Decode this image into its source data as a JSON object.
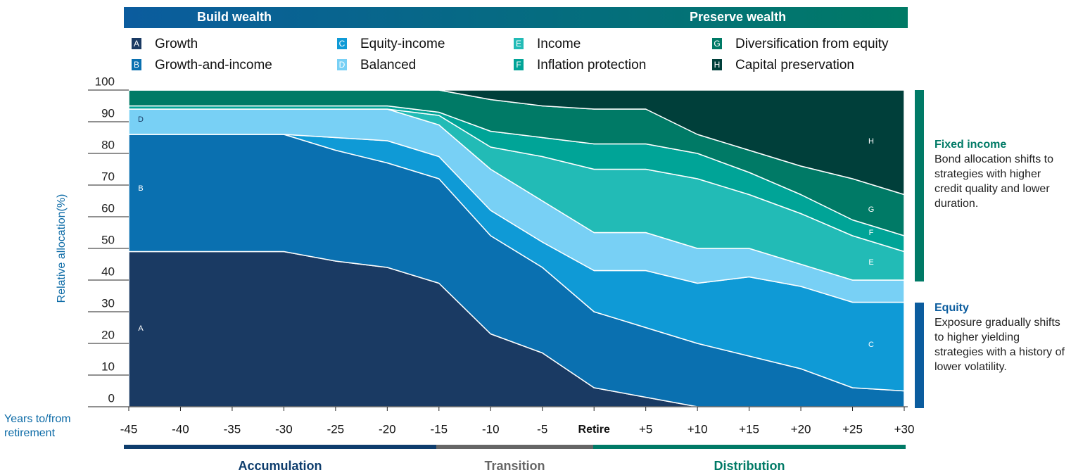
{
  "chart_data": {
    "type": "area",
    "stacked": true,
    "banner": [
      {
        "text": "Build wealth",
        "color": "#0b5c9e"
      },
      {
        "text": "Preserve wealth",
        "color": "#007a66"
      }
    ],
    "y_label": "Relative allocation(%)",
    "x_label": "Years to/from retirement",
    "categories": [
      "-45",
      "-40",
      "-35",
      "-30",
      "-25",
      "-20",
      "-15",
      "-10",
      "-5",
      "Retire",
      "+5",
      "+10",
      "+15",
      "+20",
      "+25",
      "+30"
    ],
    "series": [
      {
        "key": "A",
        "name": "Growth",
        "color": "#1a3a63",
        "values": [
          49,
          49,
          49,
          49,
          46,
          44,
          39,
          23,
          17,
          6,
          3,
          0,
          0,
          0,
          0,
          0
        ]
      },
      {
        "key": "B",
        "name": "Growth-and-income",
        "color": "#0a70b0",
        "values": [
          37,
          37,
          37,
          37,
          35,
          33,
          33,
          31,
          27,
          24,
          22,
          20,
          16,
          12,
          6,
          5
        ]
      },
      {
        "key": "C",
        "name": "Equity-income",
        "color": "#0f9ad6",
        "values": [
          0,
          0,
          0,
          0,
          4,
          7,
          7,
          8,
          8,
          13,
          18,
          19,
          25,
          26,
          27,
          28
        ]
      },
      {
        "key": "D",
        "name": "Balanced",
        "color": "#78d0f5",
        "values": [
          8,
          8,
          8,
          8,
          9,
          10,
          10,
          13,
          13,
          12,
          12,
          11,
          9,
          7,
          7,
          7
        ]
      },
      {
        "key": "E",
        "name": "Income",
        "color": "#22bbb6",
        "values": [
          0,
          0,
          0,
          0,
          0,
          0,
          3,
          7,
          14,
          20,
          20,
          22,
          17,
          16,
          14,
          9
        ]
      },
      {
        "key": "F",
        "name": "Inflation protection",
        "color": "#00a497",
        "values": [
          1,
          1,
          1,
          1,
          1,
          1,
          1,
          5,
          6,
          8,
          8,
          8,
          7,
          6,
          5,
          5
        ]
      },
      {
        "key": "G",
        "name": "Diversification from equity",
        "color": "#007a66",
        "values": [
          5,
          5,
          5,
          5,
          5,
          5,
          7,
          10,
          10,
          11,
          11,
          6,
          7,
          9,
          13,
          13
        ]
      },
      {
        "key": "H",
        "name": "Capital preservation",
        "color": "#003f3a",
        "values": [
          0,
          0,
          0,
          0,
          0,
          0,
          0,
          3,
          5,
          6,
          6,
          14,
          19,
          24,
          28,
          33
        ]
      }
    ],
    "ylim": [
      0,
      100
    ],
    "yticks": [
      0,
      10,
      20,
      30,
      40,
      50,
      60,
      70,
      80,
      90,
      100
    ],
    "side_notes": [
      {
        "title": "Fixed income",
        "text": "Bond allocation shifts to strategies with higher credit quality and lower duration.",
        "color": "#007a66"
      },
      {
        "title": "Equity",
        "text": "Exposure gradually shifts to higher yielding strategies with a history of lower volatility.",
        "color": "#0b5c9e"
      }
    ],
    "phases": [
      {
        "name": "Accumulation",
        "color": "#0e3d6d"
      },
      {
        "name": "Transition",
        "color": "#666666"
      },
      {
        "name": "Distribution",
        "color": "#007a66"
      }
    ]
  }
}
